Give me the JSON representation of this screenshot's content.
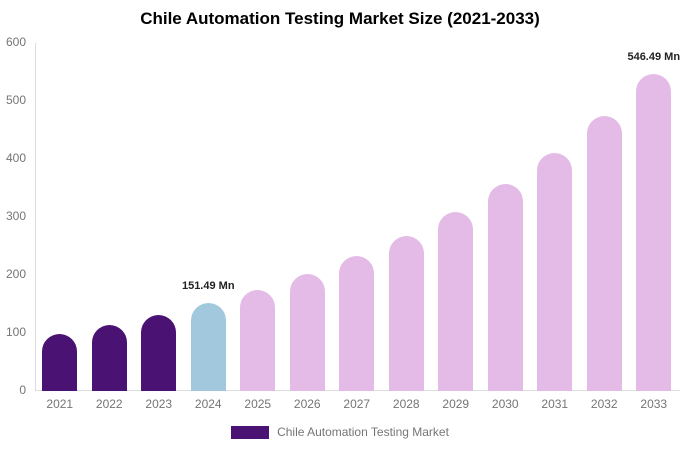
{
  "chart_data": {
    "type": "bar",
    "title": "Chile Automation Testing Market Size (2021-2033)",
    "categories": [
      "2021",
      "2022",
      "2023",
      "2024",
      "2025",
      "2026",
      "2027",
      "2028",
      "2029",
      "2030",
      "2031",
      "2032",
      "2033"
    ],
    "values": [
      98.78,
      113.91,
      131.36,
      151.49,
      174.7,
      201.46,
      232.33,
      267.93,
      309.0,
      356.33,
      410.94,
      473.91,
      546.49
    ],
    "unit": "Mn",
    "bar_colors": [
      "#4A1273",
      "#4A1273",
      "#4A1273",
      "#A2C8DD",
      "#E4BBE7",
      "#E4BBE7",
      "#E4BBE7",
      "#E4BBE7",
      "#E4BBE7",
      "#E4BBE7",
      "#E4BBE7",
      "#E4BBE7",
      "#E4BBE7"
    ],
    "ylim": [
      0,
      600
    ],
    "yticks": [
      0,
      100,
      200,
      300,
      400,
      500,
      600
    ],
    "grid": false,
    "annotations": [
      {
        "category": "2024",
        "label": "151.49 Mn"
      },
      {
        "category": "2033",
        "label": "546.49 Mn"
      }
    ],
    "legend": {
      "position": "bottom",
      "label": "Chile Automation Testing Market",
      "swatch_color": "#4A1273"
    }
  }
}
